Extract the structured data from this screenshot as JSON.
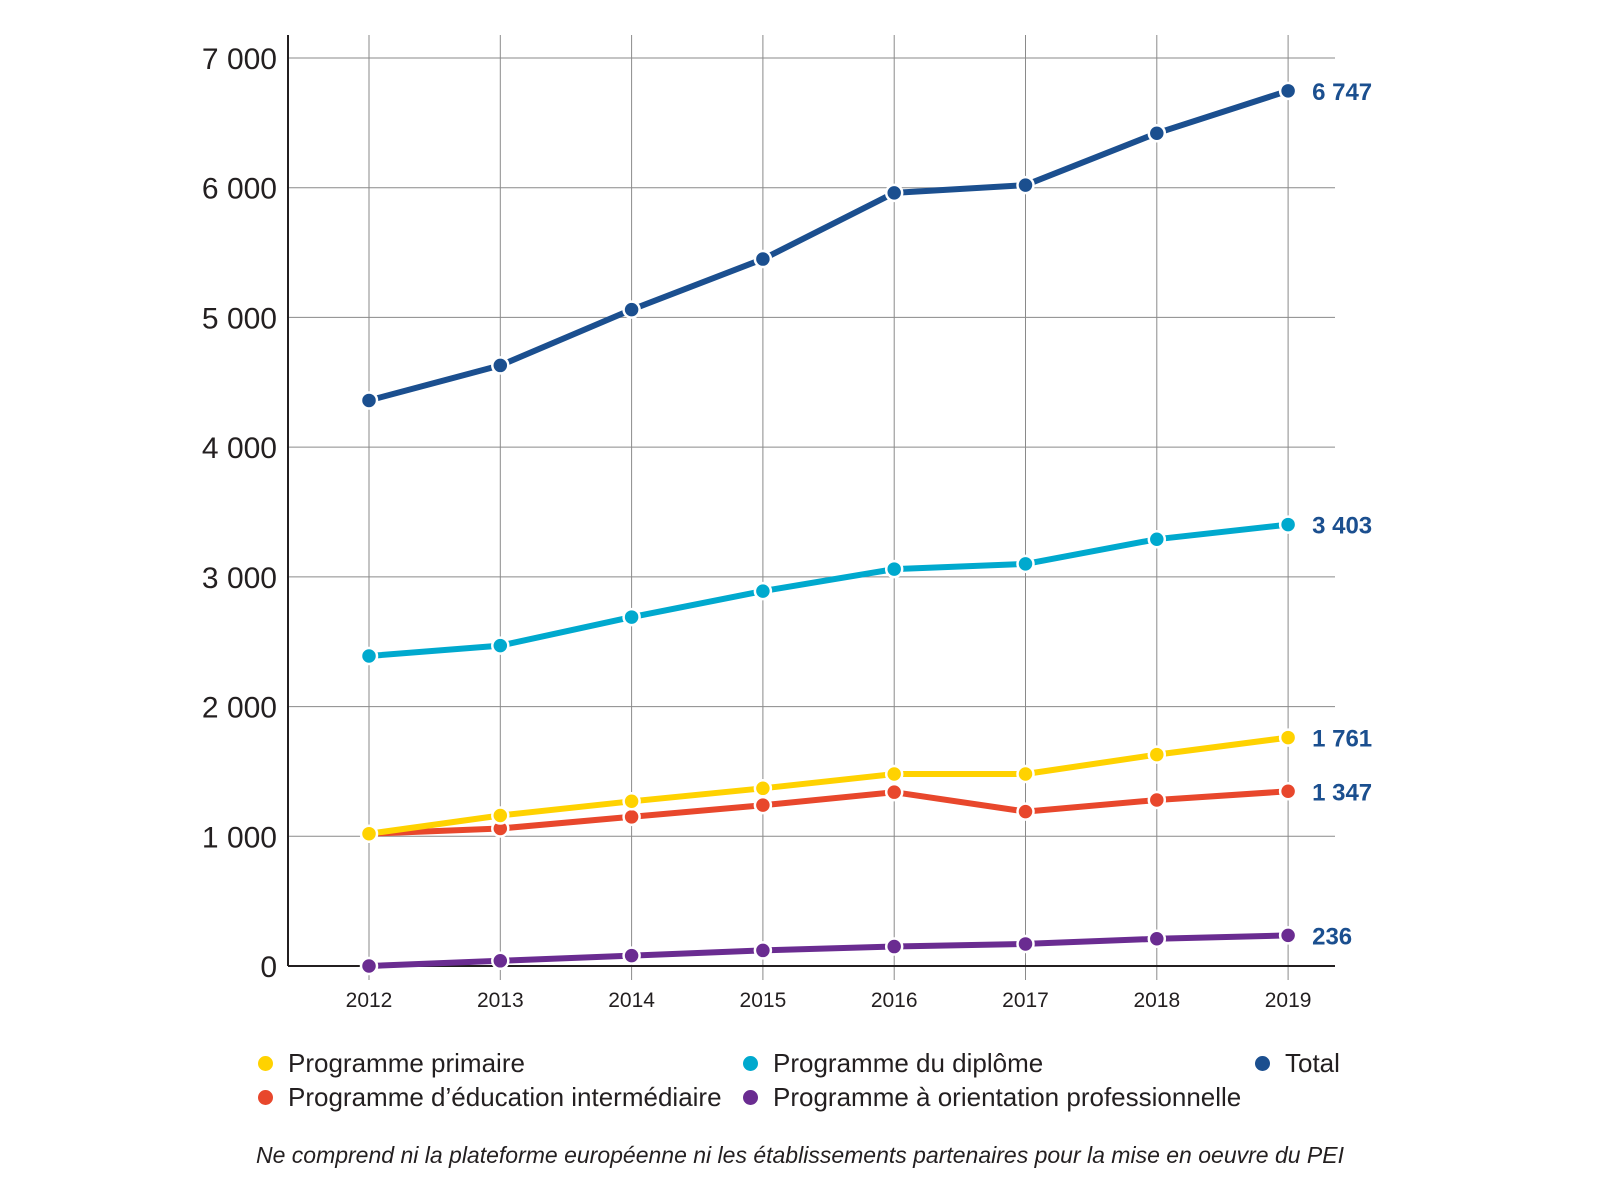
{
  "chart_data": {
    "type": "line",
    "title": "",
    "xlabel": "",
    "ylabel": "",
    "categories": [
      "2012",
      "2013",
      "2014",
      "2015",
      "2016",
      "2017",
      "2018",
      "2019"
    ],
    "ylim": [
      0,
      7000
    ],
    "yticks": [
      0,
      1000,
      2000,
      3000,
      4000,
      5000,
      6000,
      7000
    ],
    "ytick_labels": [
      "0",
      "1 000",
      "2 000",
      "3 000",
      "4 000",
      "5 000",
      "6 000",
      "7 000"
    ],
    "grid": true,
    "legend_position": "bottom",
    "series": [
      {
        "key": "total",
        "name": "Total",
        "color": "#1b4f8f",
        "values": [
          4360,
          4630,
          5060,
          5450,
          5960,
          6020,
          6420,
          6747
        ],
        "end_label": "6 747"
      },
      {
        "key": "diplome",
        "name": "Programme du diplôme",
        "color": "#00a9ce",
        "values": [
          2390,
          2470,
          2690,
          2890,
          3060,
          3100,
          3290,
          3403
        ],
        "end_label": "3 403"
      },
      {
        "key": "primaire",
        "name": "Programme primaire",
        "color": "#ffd200",
        "values": [
          1020,
          1160,
          1270,
          1370,
          1480,
          1480,
          1630,
          1761
        ],
        "end_label": "1 761"
      },
      {
        "key": "intermediaire",
        "name": "Programme d’éducation intermédiaire",
        "color": "#e8472c",
        "values": [
          1020,
          1060,
          1150,
          1240,
          1340,
          1190,
          1280,
          1347
        ],
        "end_label": "1 347"
      },
      {
        "key": "orientation",
        "name": "Programme à orientation professionnelle",
        "color": "#6a2c91",
        "values": [
          0,
          40,
          80,
          120,
          150,
          170,
          210,
          236
        ],
        "end_label": "236"
      }
    ],
    "note": "Ne comprend ni la plateforme européenne ni les établissements partenaires pour la mise en oeuvre du PEI"
  },
  "legend": {
    "items": [
      {
        "label": "Programme primaire",
        "color": "#ffd200"
      },
      {
        "label": "Programme du diplôme",
        "color": "#00a9ce"
      },
      {
        "label": "Total",
        "color": "#1b4f8f"
      },
      {
        "label": "Programme d’éducation intermédiaire",
        "color": "#e8472c"
      },
      {
        "label": "Programme à orientation professionnelle",
        "color": "#6a2c91"
      }
    ]
  }
}
